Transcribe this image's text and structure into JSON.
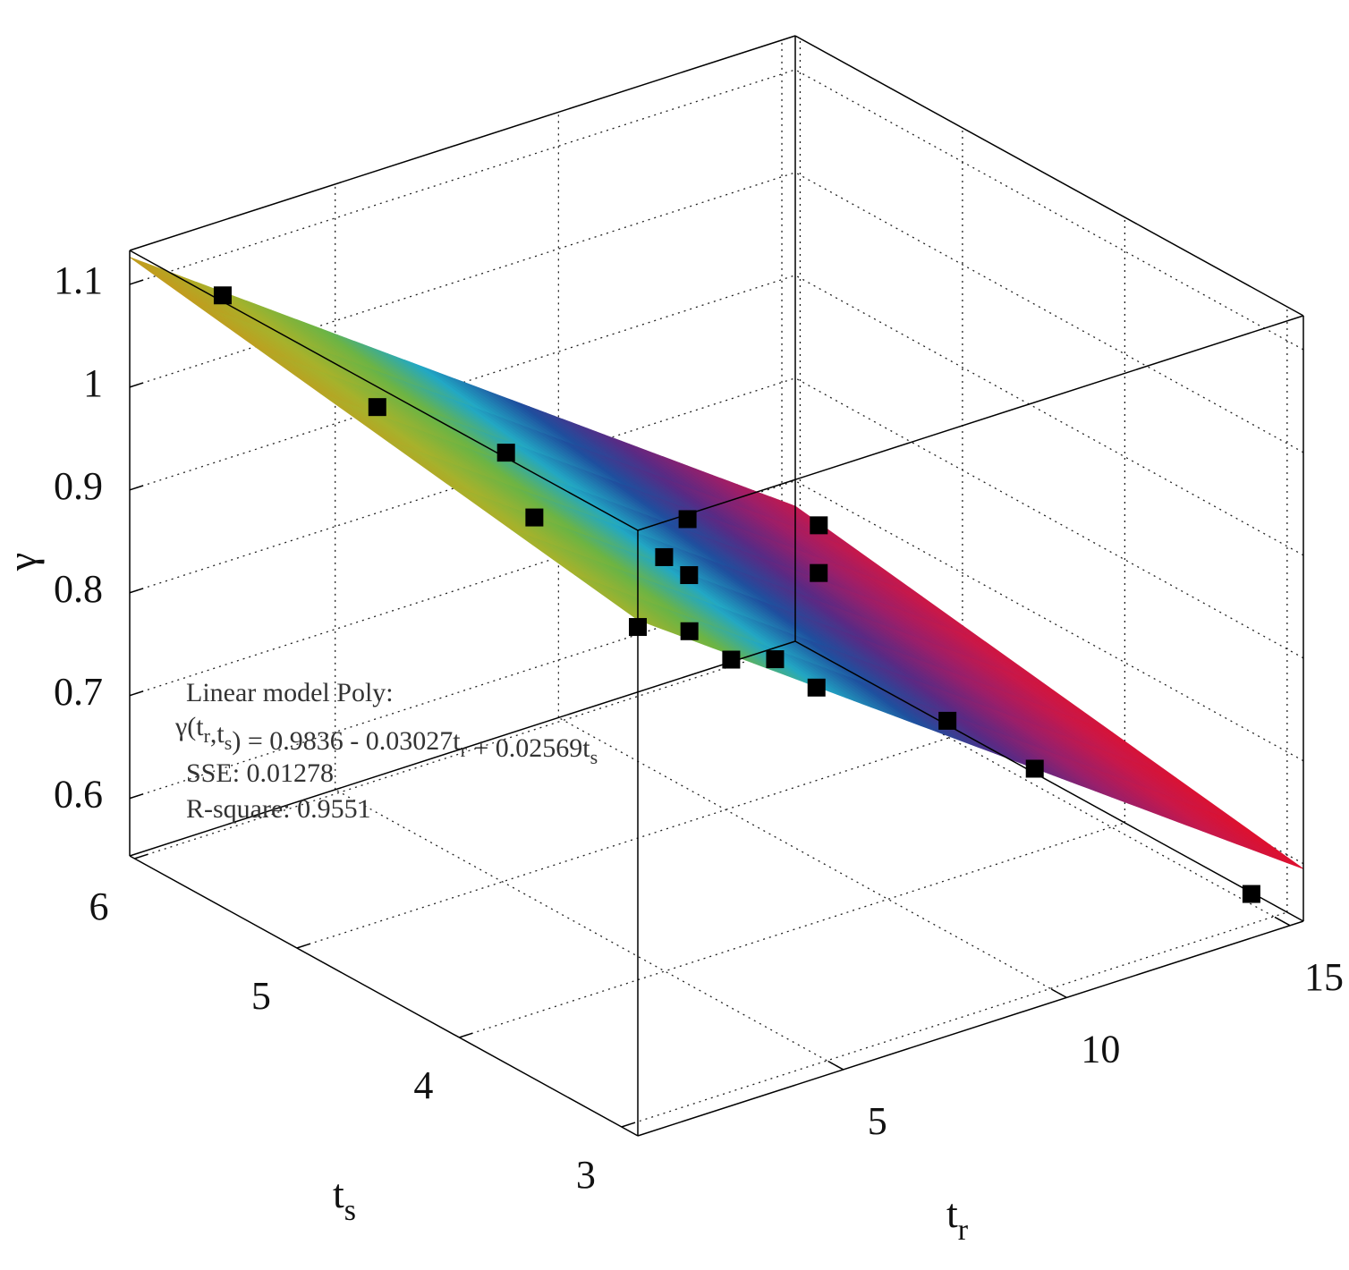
{
  "chart_data": {
    "type": "surface3d",
    "xlabel": {
      "text": "t",
      "sub": "r"
    },
    "ylabel": {
      "text": "t",
      "sub": "s"
    },
    "zlabel": "γ",
    "xlim": [
      0.4,
      15.3
    ],
    "ylim": [
      2.9,
      6.03
    ],
    "zlim": [
      0.544,
      1.133
    ],
    "xticks": [
      5,
      10,
      15
    ],
    "yticks": [
      3,
      4,
      5,
      6
    ],
    "zticks": [
      0.6,
      0.7,
      0.8,
      0.9,
      1,
      1.1
    ],
    "grid": true,
    "fit": {
      "intercept": 0.9836,
      "x": -0.03027,
      "y": 0.02569
    },
    "colormap": [
      "#e0102c",
      "#c8184a",
      "#9a1f6a",
      "#5a2a84",
      "#1f4f9e",
      "#22a8c4",
      "#6cb444",
      "#a6b22c",
      "#c49a1c"
    ],
    "points": {
      "color": "#000000",
      "x": [
        2.3,
        2.2,
        5.3,
        2.3,
        9.4,
        5.75,
        5.8,
        0.4,
        2.1,
        2.2,
        4.2,
        15.1,
        11.9,
        4.4,
        8.35,
        9.25,
        14.5
      ],
      "y": [
        5.98,
        5.0,
        5.06,
        4.06,
        5.07,
        4.21,
        4.07,
        2.9,
        3.05,
        2.82,
        3.1,
        5.83,
        4.95,
        2.9,
        3.18,
        2.89,
        3.0
      ],
      "z": [
        1.067,
        1.045,
        0.952,
        1.018,
        0.829,
        0.918,
        0.912,
        1.039,
        0.998,
        0.989,
        0.937,
        0.677,
        0.752,
        0.924,
        0.812,
        0.778,
        0.573
      ]
    },
    "annotation": {
      "title": "Linear model Poly:",
      "equation": [
        {
          "text": "γ(t"
        },
        {
          "sub": "r"
        },
        {
          "text": ",t"
        },
        {
          "sub": "s"
        },
        {
          "text": ") = 0.9836 - 0.03027t"
        },
        {
          "sub": "r"
        },
        {
          "text": " + 0.02569t"
        },
        {
          "sub": "s"
        }
      ],
      "sse": "SSE: 0.01278",
      "rsquare": "R-square: 0.9551"
    }
  }
}
